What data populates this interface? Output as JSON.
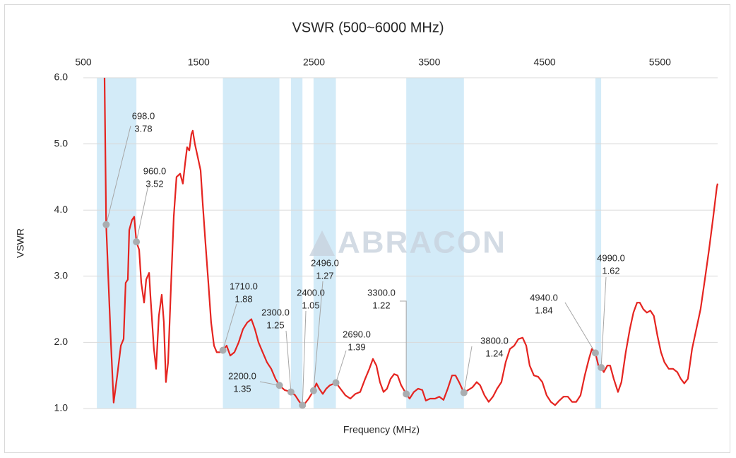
{
  "chart_data": {
    "type": "line",
    "title": "VSWR (500~6000 MHz)",
    "xlabel": "Frequency (MHz)",
    "ylabel": "VSWR",
    "watermark": "ABRACON",
    "xlim": [
      500,
      6000
    ],
    "xticks": [
      500,
      1500,
      2500,
      3500,
      4500,
      5500
    ],
    "ylim": [
      1,
      6
    ],
    "yticks": [
      {
        "value": 1,
        "label": "1.0"
      },
      {
        "value": 2,
        "label": "2.0"
      },
      {
        "value": 3,
        "label": "3.0"
      },
      {
        "value": 4,
        "label": "4.0"
      },
      {
        "value": 5,
        "label": "5.0"
      },
      {
        "value": 6,
        "label": "6.0"
      }
    ],
    "grid": true,
    "color": "#e52420",
    "band_color": "#d3ebf8",
    "marker_color": "#a9adb0",
    "bands": [
      [
        617,
        960
      ],
      [
        1710,
        2200
      ],
      [
        2300,
        2400
      ],
      [
        2496,
        2690
      ],
      [
        3300,
        3800
      ],
      [
        4940,
        4990
      ]
    ],
    "x": [
      684,
      698,
      739,
      763,
      794,
      825,
      849,
      867,
      886,
      898,
      922,
      941,
      960,
      984,
      1002,
      1027,
      1045,
      1070,
      1082,
      1112,
      1131,
      1155,
      1180,
      1198,
      1216,
      1235,
      1259,
      1284,
      1308,
      1339,
      1363,
      1382,
      1400,
      1419,
      1437,
      1449,
      1467,
      1492,
      1517,
      1535,
      1559,
      1584,
      1608,
      1633,
      1657,
      1682,
      1710,
      1743,
      1774,
      1810,
      1847,
      1884,
      1921,
      1957,
      1988,
      2019,
      2055,
      2092,
      2129,
      2166,
      2200,
      2245,
      2300,
      2337,
      2374,
      2400,
      2423,
      2454,
      2496,
      2521,
      2545,
      2576,
      2606,
      2637,
      2690,
      2729,
      2772,
      2815,
      2858,
      2900,
      2944,
      2980,
      3011,
      3041,
      3072,
      3103,
      3133,
      3164,
      3195,
      3225,
      3256,
      3300,
      3329,
      3366,
      3403,
      3439,
      3470,
      3507,
      3550,
      3586,
      3623,
      3660,
      3697,
      3727,
      3758,
      3800,
      3837,
      3874,
      3911,
      3941,
      3978,
      4015,
      4052,
      4088,
      4125,
      4162,
      4199,
      4236,
      4272,
      4309,
      4340,
      4370,
      4407,
      4444,
      4480,
      4517,
      4554,
      4591,
      4627,
      4664,
      4701,
      4738,
      4774,
      4811,
      4848,
      4884,
      4909,
      4940,
      4966,
      4990,
      5013,
      5044,
      5068,
      5099,
      5136,
      5166,
      5203,
      5239,
      5270,
      5301,
      5325,
      5356,
      5386,
      5417,
      5447,
      5478,
      5509,
      5539,
      5576,
      5613,
      5650,
      5680,
      5711,
      5742,
      5778,
      5815,
      5852,
      5889,
      5925,
      5962,
      5993,
      6000
    ],
    "values": [
      6.0,
      3.78,
      2.0,
      1.09,
      1.5,
      1.95,
      2.05,
      2.9,
      2.95,
      3.7,
      3.85,
      3.9,
      3.52,
      3.4,
      2.9,
      2.6,
      2.95,
      3.05,
      2.7,
      1.9,
      1.6,
      2.4,
      2.72,
      2.3,
      1.4,
      1.7,
      2.8,
      3.9,
      4.5,
      4.55,
      4.4,
      4.7,
      4.95,
      4.9,
      5.15,
      5.2,
      5.0,
      4.8,
      4.6,
      4.1,
      3.5,
      2.9,
      2.3,
      1.95,
      1.85,
      1.85,
      1.88,
      1.95,
      1.8,
      1.85,
      2.0,
      2.2,
      2.3,
      2.35,
      2.2,
      2.0,
      1.85,
      1.7,
      1.6,
      1.45,
      1.35,
      1.28,
      1.25,
      1.2,
      1.1,
      1.05,
      1.08,
      1.15,
      1.27,
      1.38,
      1.3,
      1.22,
      1.3,
      1.35,
      1.39,
      1.3,
      1.2,
      1.15,
      1.22,
      1.25,
      1.45,
      1.6,
      1.75,
      1.65,
      1.4,
      1.25,
      1.3,
      1.45,
      1.52,
      1.5,
      1.35,
      1.22,
      1.15,
      1.25,
      1.3,
      1.28,
      1.12,
      1.15,
      1.15,
      1.18,
      1.13,
      1.3,
      1.5,
      1.5,
      1.4,
      1.24,
      1.28,
      1.32,
      1.4,
      1.35,
      1.2,
      1.1,
      1.18,
      1.3,
      1.4,
      1.7,
      1.9,
      1.95,
      2.05,
      2.07,
      1.95,
      1.65,
      1.5,
      1.48,
      1.4,
      1.2,
      1.1,
      1.05,
      1.12,
      1.18,
      1.18,
      1.1,
      1.1,
      1.2,
      1.5,
      1.75,
      1.9,
      1.84,
      1.65,
      1.62,
      1.55,
      1.65,
      1.65,
      1.45,
      1.25,
      1.4,
      1.85,
      2.2,
      2.45,
      2.6,
      2.6,
      2.5,
      2.45,
      2.48,
      2.4,
      2.1,
      1.85,
      1.7,
      1.6,
      1.6,
      1.55,
      1.45,
      1.38,
      1.45,
      1.9,
      2.2,
      2.5,
      2.95,
      3.4,
      3.9,
      4.35,
      4.4
    ],
    "markers": [
      {
        "x": 698,
        "x_label": "698.0",
        "y": 3.78
      },
      {
        "x": 960,
        "x_label": "960.0",
        "y": 3.52
      },
      {
        "x": 1710,
        "x_label": "1710.0",
        "y": 1.88
      },
      {
        "x": 2200,
        "x_label": "2200.0",
        "y": 1.35
      },
      {
        "x": 2300,
        "x_label": "2300.0",
        "y": 1.25
      },
      {
        "x": 2400,
        "x_label": "2400.0",
        "y": 1.05
      },
      {
        "x": 2496,
        "x_label": "2496.0",
        "y": 1.27
      },
      {
        "x": 2690,
        "x_label": "2690.0",
        "y": 1.39
      },
      {
        "x": 3300,
        "x_label": "3300.0",
        "y": 1.22
      },
      {
        "x": 3800,
        "x_label": "3800.0",
        "y": 1.24
      },
      {
        "x": 4940,
        "x_label": "4940.0",
        "y": 1.84
      },
      {
        "x": 4990,
        "x_label": "4990.0",
        "y": 1.62
      }
    ]
  }
}
